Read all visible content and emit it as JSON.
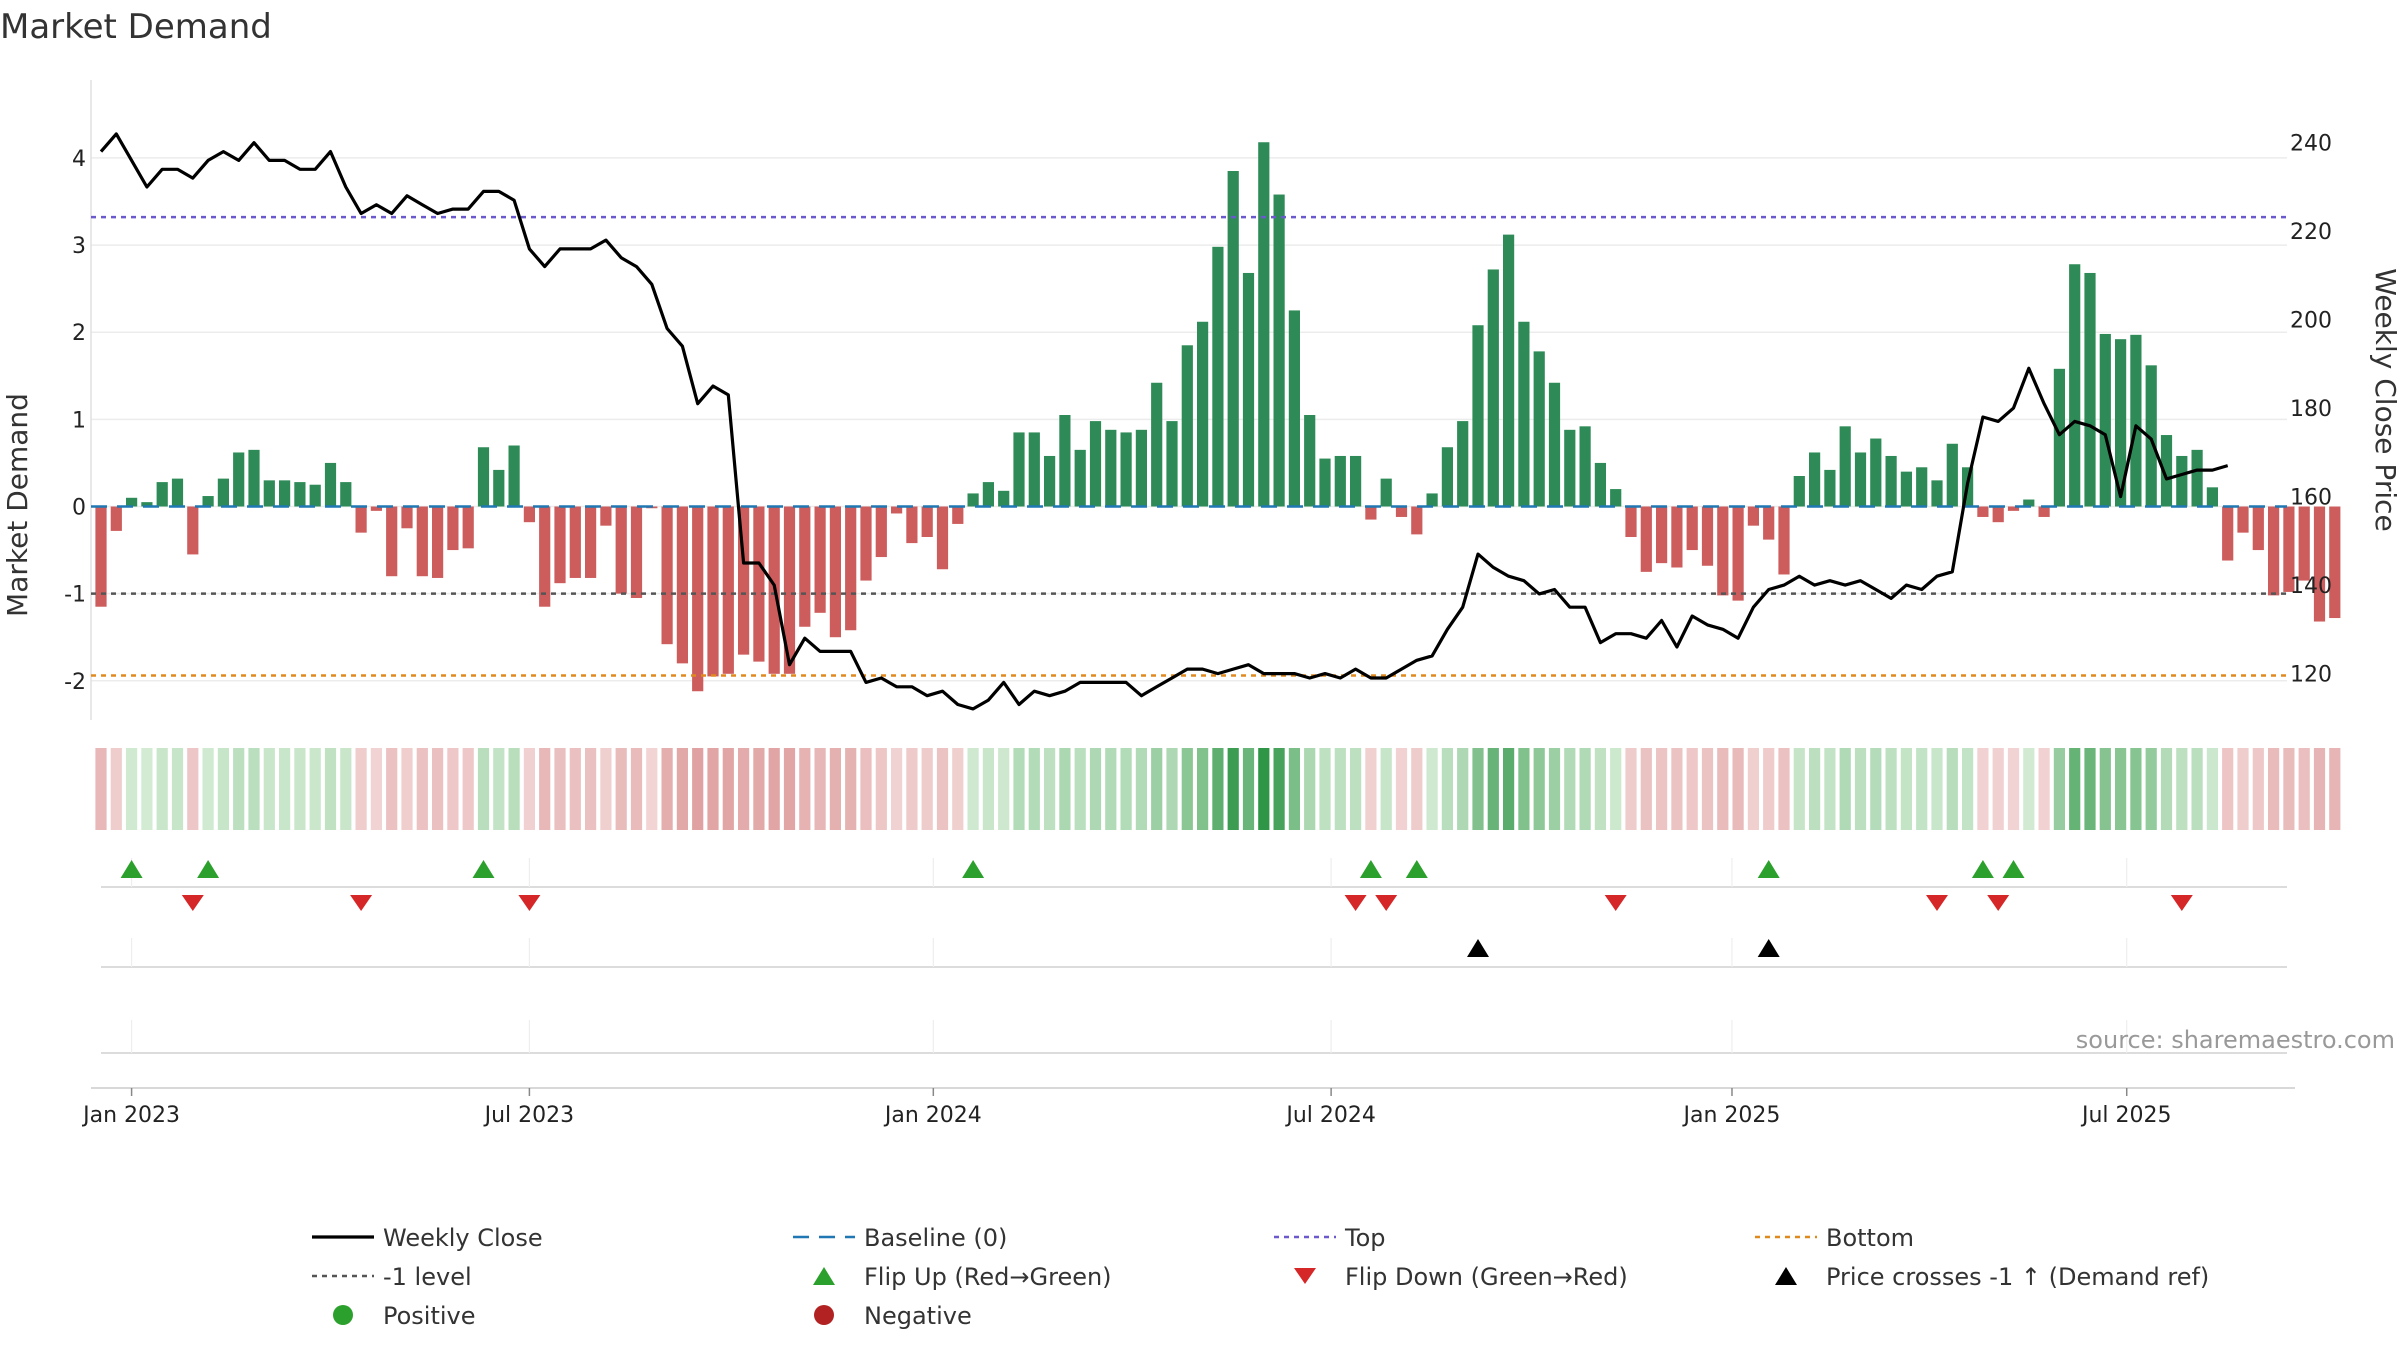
{
  "chart_data": {
    "type": "bar",
    "title": "Market Demand",
    "ylabel": "Market Demand",
    "ylabel_right": "Weekly Close Price",
    "ylim": [
      -2.45,
      4.55
    ],
    "ylim_right": [
      109.5,
      247.4
    ],
    "yticks": [
      -2,
      -1,
      0,
      1,
      2,
      3,
      4
    ],
    "yticks_right": [
      120,
      140,
      160,
      180,
      200,
      220,
      240
    ],
    "xticks": [
      "Jan 2023",
      "Jul 2023",
      "Jan 2024",
      "Jul 2024",
      "Jan 2025",
      "Jul 2025"
    ],
    "xtick_weeks": [
      2,
      28,
      54.4,
      80.4,
      106.6,
      132.4
    ],
    "top_level": 3.32,
    "bottom_level": -1.94,
    "minus1_level": -1,
    "baseline": 0,
    "demand": [
      -1.15,
      -0.28,
      0.1,
      0.05,
      0.28,
      0.32,
      -0.55,
      0.12,
      0.32,
      0.62,
      0.65,
      0.3,
      0.3,
      0.28,
      0.25,
      0.5,
      0.28,
      -0.3,
      -0.05,
      -0.8,
      -0.25,
      -0.8,
      -0.82,
      -0.5,
      -0.48,
      0.68,
      0.42,
      0.7,
      -0.18,
      -1.15,
      -0.88,
      -0.82,
      -0.82,
      -0.22,
      -1.0,
      -1.05,
      -0.02,
      -1.58,
      -1.8,
      -2.12,
      -1.95,
      -1.92,
      -1.7,
      -1.78,
      -1.92,
      -1.92,
      -1.38,
      -1.22,
      -1.5,
      -1.42,
      -0.85,
      -0.58,
      -0.08,
      -0.42,
      -0.35,
      -0.72,
      -0.2,
      0.15,
      0.28,
      0.18,
      0.85,
      0.85,
      0.58,
      1.05,
      0.65,
      0.98,
      0.88,
      0.85,
      0.88,
      1.42,
      0.98,
      1.85,
      2.12,
      2.98,
      3.85,
      2.68,
      4.18,
      3.58,
      2.25,
      1.05,
      0.55,
      0.58,
      0.58,
      -0.15,
      0.32,
      -0.12,
      -0.32,
      0.15,
      0.68,
      0.98,
      2.08,
      2.72,
      3.12,
      2.12,
      1.78,
      1.42,
      0.88,
      0.92,
      0.5,
      0.2,
      -0.35,
      -0.75,
      -0.65,
      -0.7,
      -0.5,
      -0.68,
      -1.02,
      -1.08,
      -0.22,
      -0.38,
      -0.78,
      0.35,
      0.62,
      0.42,
      0.92,
      0.62,
      0.78,
      0.58,
      0.4,
      0.45,
      0.3,
      0.72,
      0.45,
      -0.12,
      -0.18,
      -0.05,
      0.08,
      -0.12,
      1.58,
      2.78,
      2.68,
      1.98,
      1.92,
      1.97,
      1.62,
      0.82,
      0.58,
      0.65,
      0.22,
      -0.62,
      -0.3,
      -0.5,
      -1.02,
      -0.98,
      -0.85,
      -1.32,
      -1.28
    ],
    "price": [
      238,
      242,
      236,
      230,
      234,
      234,
      232,
      236,
      238,
      236,
      240,
      236,
      236,
      234,
      234,
      238,
      230,
      224,
      226,
      224,
      228,
      226,
      224,
      225,
      225,
      229,
      229,
      227,
      216,
      212,
      216,
      216,
      216,
      218,
      214,
      212,
      208,
      198,
      194,
      181,
      185,
      183,
      145,
      145,
      140,
      122,
      128,
      125,
      125,
      125,
      118,
      119,
      117,
      117,
      115,
      116,
      113,
      112,
      114,
      118,
      113,
      116,
      115,
      116,
      118,
      118,
      118,
      118,
      115,
      117,
      119,
      121,
      121,
      120,
      121,
      122,
      120,
      120,
      120,
      119,
      120,
      119,
      121,
      119,
      119,
      121,
      123,
      124,
      130,
      135,
      147,
      144,
      142,
      141,
      138,
      139,
      135,
      135,
      127,
      129,
      129,
      128,
      132,
      126,
      133,
      131,
      130,
      128,
      135,
      139,
      140,
      142,
      140,
      141,
      140,
      141,
      139,
      137,
      140,
      139,
      142,
      143,
      163,
      178,
      177,
      180,
      189,
      181,
      174,
      177,
      176,
      174,
      160,
      176,
      173,
      164,
      165,
      166,
      166,
      167
    ],
    "flip_up_weeks": [
      2,
      7,
      25,
      57,
      83,
      86,
      109,
      123,
      125
    ],
    "flip_down_weeks": [
      6,
      17,
      28,
      82,
      84,
      99,
      120,
      124,
      136
    ],
    "cross_weeks": [
      90,
      109
    ],
    "legend": [
      {
        "key": "weekly-close",
        "label": "Weekly Close",
        "marker": "line"
      },
      {
        "key": "baseline",
        "label": "Baseline (0)",
        "marker": "dash"
      },
      {
        "key": "top",
        "label": "Top",
        "marker": "dot"
      },
      {
        "key": "bottom",
        "label": "Bottom",
        "marker": "dot"
      },
      {
        "key": "minus1",
        "label": "-1 level",
        "marker": "dot"
      },
      {
        "key": "flip-up",
        "label": "Flip Up (Red→Green)",
        "marker": "triangle-up"
      },
      {
        "key": "flip-down",
        "label": "Flip Down (Green→Red)",
        "marker": "triangle-down"
      },
      {
        "key": "cross",
        "label": "Price crosses -1 ↑ (Demand ref)",
        "marker": "triangle-up"
      },
      {
        "key": "positive",
        "label": "Positive",
        "marker": "circle"
      },
      {
        "key": "negative",
        "label": "Negative",
        "marker": "circle"
      }
    ],
    "source": "source: sharemaestro.com"
  },
  "colors": {
    "positive_bar": "#2e8b57",
    "negative_bar": "#cd5c5c",
    "price_line": "#000000",
    "baseline": "#1f77b4",
    "top": "#6a5acd",
    "bottom": "#e08a1e",
    "minus1": "#555555",
    "flip_up": "#2ca02c",
    "flip_down": "#d62728",
    "cross": "#000000",
    "positive_dot": "#2ca02c",
    "negative_dot": "#b22222"
  }
}
